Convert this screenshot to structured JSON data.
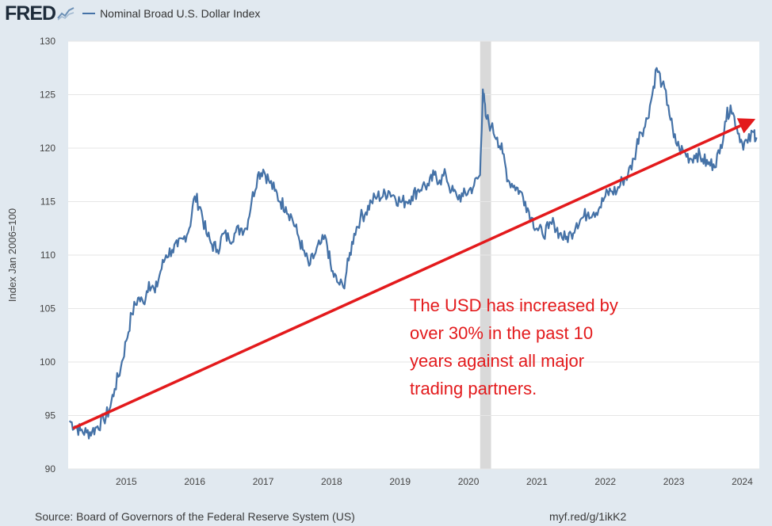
{
  "header": {
    "logo_text": "FRED",
    "series_title": "Nominal Broad U.S. Dollar Index"
  },
  "chart_data": {
    "type": "line",
    "title": "Nominal Broad U.S. Dollar Index",
    "ylabel": "Index Jan 2006=100",
    "xlabel": "",
    "ylim": [
      90,
      130
    ],
    "xlim": [
      2014.15,
      2024.25
    ],
    "yticks": [
      90,
      95,
      100,
      105,
      110,
      115,
      120,
      125,
      130
    ],
    "xticks": [
      "2015",
      "2016",
      "2017",
      "2018",
      "2019",
      "2020",
      "2021",
      "2022",
      "2023",
      "2024"
    ],
    "recession": {
      "start": 2020.17,
      "end": 2020.33
    },
    "series": [
      {
        "name": "Nominal Broad U.S. Dollar Index",
        "color": "#4572a7",
        "x": [
          2014.17,
          2014.25,
          2014.33,
          2014.42,
          2014.5,
          2014.58,
          2014.67,
          2014.75,
          2014.83,
          2014.92,
          2015.0,
          2015.08,
          2015.17,
          2015.25,
          2015.33,
          2015.42,
          2015.5,
          2015.58,
          2015.67,
          2015.75,
          2015.83,
          2015.92,
          2016.0,
          2016.08,
          2016.17,
          2016.25,
          2016.33,
          2016.42,
          2016.5,
          2016.58,
          2016.67,
          2016.75,
          2016.83,
          2016.92,
          2017.0,
          2017.08,
          2017.17,
          2017.25,
          2017.33,
          2017.42,
          2017.5,
          2017.58,
          2017.67,
          2017.75,
          2017.83,
          2017.92,
          2018.0,
          2018.08,
          2018.17,
          2018.25,
          2018.33,
          2018.42,
          2018.5,
          2018.58,
          2018.67,
          2018.75,
          2018.83,
          2018.92,
          2019.0,
          2019.08,
          2019.17,
          2019.25,
          2019.33,
          2019.42,
          2019.5,
          2019.58,
          2019.67,
          2019.75,
          2019.83,
          2019.92,
          2020.0,
          2020.08,
          2020.17,
          2020.21,
          2020.25,
          2020.33,
          2020.42,
          2020.5,
          2020.58,
          2020.67,
          2020.75,
          2020.83,
          2020.92,
          2021.0,
          2021.08,
          2021.17,
          2021.25,
          2021.33,
          2021.42,
          2021.5,
          2021.58,
          2021.67,
          2021.75,
          2021.83,
          2021.92,
          2022.0,
          2022.08,
          2022.17,
          2022.25,
          2022.33,
          2022.42,
          2022.5,
          2022.58,
          2022.67,
          2022.75,
          2022.83,
          2022.92,
          2023.0,
          2023.08,
          2023.17,
          2023.25,
          2023.33,
          2023.42,
          2023.5,
          2023.58,
          2023.67,
          2023.75,
          2023.83,
          2023.92,
          2024.0,
          2024.08,
          2024.17,
          2024.21
        ],
        "values": [
          94.5,
          94.0,
          93.6,
          93.4,
          93.5,
          94.0,
          94.6,
          95.5,
          97.5,
          99.5,
          102.0,
          104.5,
          106.0,
          105.5,
          107.5,
          106.5,
          108.5,
          110.0,
          110.5,
          110.8,
          111.5,
          112.5,
          115.5,
          114.5,
          112.0,
          111.0,
          110.5,
          112.0,
          111.5,
          112.0,
          112.5,
          112.5,
          115.0,
          117.5,
          118.0,
          117.0,
          116.0,
          115.0,
          114.5,
          113.5,
          112.0,
          110.5,
          109.0,
          110.0,
          111.0,
          111.5,
          108.5,
          107.5,
          107.0,
          109.5,
          112.0,
          113.5,
          114.0,
          115.0,
          115.5,
          115.5,
          116.0,
          115.5,
          115.0,
          115.0,
          115.5,
          116.0,
          116.5,
          116.5,
          117.5,
          117.0,
          117.5,
          116.0,
          115.5,
          115.5,
          116.0,
          116.5,
          117.5,
          125.5,
          123.0,
          122.0,
          121.0,
          119.5,
          117.0,
          116.5,
          116.0,
          115.0,
          113.5,
          112.5,
          112.0,
          112.5,
          113.0,
          112.0,
          111.5,
          112.0,
          113.0,
          113.5,
          114.0,
          114.0,
          114.5,
          115.5,
          116.0,
          116.0,
          117.0,
          117.5,
          119.0,
          121.5,
          122.0,
          124.5,
          127.5,
          126.0,
          124.0,
          121.0,
          120.0,
          119.5,
          119.0,
          119.5,
          119.0,
          118.5,
          118.5,
          119.5,
          122.5,
          124.0,
          122.0,
          120.5,
          120.5,
          121.5,
          121.0
        ]
      }
    ],
    "annotation": {
      "arrow": {
        "x1": 2014.22,
        "y1": 93.8,
        "x2": 2024.15,
        "y2": 122.6
      },
      "arrow_color": "#e31a1c",
      "text_lines": [
        "The USD has increased by",
        "over 30% in the past 10",
        "years against all major",
        "trading partners."
      ],
      "text_color": "#e31a1c"
    }
  },
  "footer": {
    "source": "Source: Board of Governors of the Federal Reserve System (US)",
    "url": "myf.red/g/1ikK2"
  }
}
